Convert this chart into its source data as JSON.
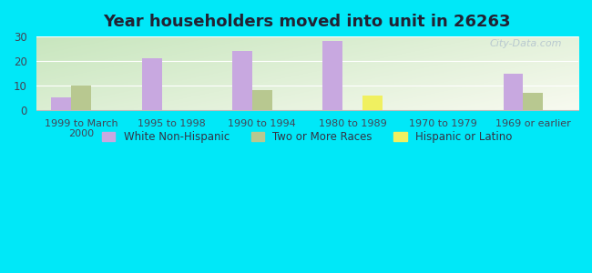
{
  "title": "Year householders moved into unit in 26263",
  "categories": [
    "1999 to March\n2000",
    "1995 to 1998",
    "1990 to 1994",
    "1980 to 1989",
    "1970 to 1979",
    "1969 or earlier"
  ],
  "white_non_hispanic": [
    5,
    21,
    24,
    28,
    0,
    15
  ],
  "two_or_more_races": [
    10,
    0,
    8,
    0,
    0,
    7
  ],
  "hispanic_or_latino": [
    0,
    0,
    0,
    6,
    0,
    0
  ],
  "bar_width": 0.22,
  "ylim": [
    0,
    30
  ],
  "yticks": [
    0,
    10,
    20,
    30
  ],
  "color_white": "#c8a8e0",
  "color_two_more": "#b8c890",
  "color_hispanic": "#f0f060",
  "bg_outer": "#00e8f8",
  "title_fontsize": 13,
  "title_color": "#222233",
  "legend_labels": [
    "White Non-Hispanic",
    "Two or More Races",
    "Hispanic or Latino"
  ],
  "watermark": "City-Data.com"
}
